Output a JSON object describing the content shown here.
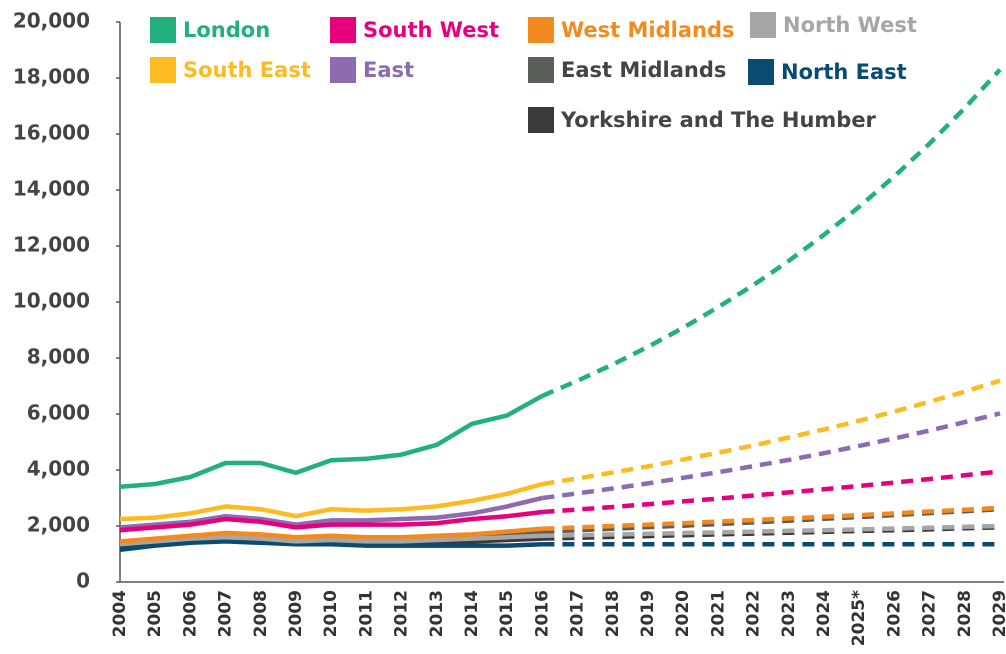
{
  "chart_data": {
    "type": "line",
    "categories": [
      "2004",
      "2005",
      "2006",
      "2007",
      "2008",
      "2009",
      "2010",
      "2011",
      "2012",
      "2013",
      "2014",
      "2015",
      "2016",
      "2017",
      "2018",
      "2019",
      "2020",
      "2021",
      "2022",
      "2023",
      "2024",
      "2025*",
      "2026",
      "2027",
      "2028",
      "2029"
    ],
    "dash_from_index": 12,
    "ylim": [
      0,
      20000
    ],
    "yticks": [
      0,
      {
        "value": 2000,
        "label": "2,000"
      },
      {
        "value": 4000,
        "label": "4,000"
      },
      {
        "value": 6000,
        "label": "6,000"
      },
      {
        "value": 8000,
        "label": "8,000"
      },
      {
        "value": 10000,
        "label": "10,000"
      },
      {
        "value": 12000,
        "label": "12,000"
      },
      {
        "value": 14000,
        "label": "14,000"
      },
      {
        "value": 16000,
        "label": "16,000"
      },
      {
        "value": 18000,
        "label": "18,000"
      },
      {
        "value": 20000,
        "label": "20,000"
      }
    ],
    "series": [
      {
        "name": "London",
        "color": "#21b07e",
        "values": [
          3400,
          3500,
          3750,
          4250,
          4250,
          3900,
          4350,
          4400,
          4550,
          4900,
          5650,
          5950,
          6650,
          7190,
          7770,
          8400,
          9080,
          9820,
          10610,
          11470,
          12400,
          13400,
          14490,
          15660,
          16930,
          18300
        ]
      },
      {
        "name": "South West",
        "color": "#e6007e",
        "values": [
          1850,
          1950,
          2050,
          2250,
          2150,
          1950,
          2050,
          2050,
          2050,
          2100,
          2250,
          2350,
          2500,
          2590,
          2680,
          2780,
          2880,
          2980,
          3090,
          3200,
          3310,
          3430,
          3550,
          3680,
          3810,
          3950
        ]
      },
      {
        "name": "West Midlands",
        "color": "#f28a1e",
        "values": [
          1450,
          1550,
          1650,
          1750,
          1700,
          1600,
          1650,
          1600,
          1600,
          1650,
          1700,
          1800,
          1900,
          1950,
          2000,
          2050,
          2100,
          2160,
          2210,
          2270,
          2330,
          2390,
          2450,
          2520,
          2580,
          2650
        ]
      },
      {
        "name": "North West",
        "color": "#a6a6a6",
        "values": [
          1350,
          1450,
          1550,
          1600,
          1550,
          1450,
          1500,
          1450,
          1450,
          1500,
          1550,
          1600,
          1650,
          1670,
          1700,
          1720,
          1750,
          1770,
          1800,
          1830,
          1850,
          1880,
          1910,
          1940,
          1970,
          2000
        ]
      },
      {
        "name": "South East",
        "color": "#fbbb21",
        "values": [
          2250,
          2300,
          2450,
          2700,
          2600,
          2350,
          2600,
          2550,
          2600,
          2700,
          2900,
          3150,
          3500,
          3700,
          3910,
          4130,
          4370,
          4620,
          4880,
          5160,
          5450,
          5760,
          6090,
          6440,
          6800,
          7190
        ]
      },
      {
        "name": "East",
        "color": "#8c6bb1",
        "values": [
          1950,
          2050,
          2150,
          2350,
          2250,
          2050,
          2200,
          2200,
          2250,
          2300,
          2450,
          2700,
          3000,
          3165,
          3340,
          3520,
          3720,
          3920,
          4140,
          4360,
          4600,
          4860,
          5130,
          5410,
          5710,
          6020
        ]
      },
      {
        "name": "East Midlands",
        "color": "#5a5f5a",
        "values": [
          1400,
          1500,
          1600,
          1700,
          1650,
          1550,
          1600,
          1550,
          1550,
          1600,
          1650,
          1700,
          1800,
          1850,
          1900,
          1960,
          2010,
          2070,
          2130,
          2190,
          2260,
          2320,
          2390,
          2460,
          2530,
          2600
        ]
      },
      {
        "name": "North East",
        "color": "#0a4b72",
        "values": [
          1150,
          1300,
          1400,
          1450,
          1400,
          1350,
          1350,
          1300,
          1300,
          1300,
          1300,
          1300,
          1350,
          1350,
          1350,
          1350,
          1350,
          1350,
          1350,
          1350,
          1350,
          1350,
          1350,
          1350,
          1350,
          1350
        ]
      },
      {
        "name": "Yorkshire and The Humber",
        "color": "#3a3a3a",
        "values": [
          1250,
          1400,
          1500,
          1550,
          1500,
          1450,
          1450,
          1400,
          1400,
          1400,
          1450,
          1500,
          1550,
          1580,
          1610,
          1640,
          1670,
          1700,
          1730,
          1760,
          1790,
          1820,
          1850,
          1880,
          1920,
          1950
        ]
      }
    ]
  }
}
